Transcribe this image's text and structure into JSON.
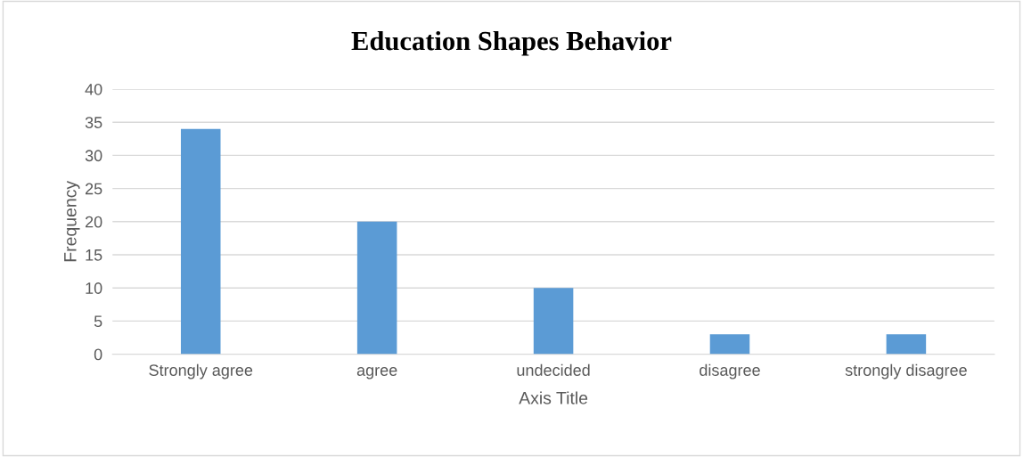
{
  "chart_data": {
    "type": "bar",
    "title": "Education Shapes Behavior",
    "xlabel": "Axis Title",
    "ylabel": "Frequency",
    "categories": [
      "Strongly agree",
      "agree",
      "undecided",
      "disagree",
      "strongly disagree"
    ],
    "values": [
      34,
      20,
      10,
      3,
      3
    ],
    "color": "#5b9bd5",
    "ylim": [
      0,
      40
    ],
    "yticks": [
      0,
      5,
      10,
      15,
      20,
      25,
      30,
      35,
      40
    ],
    "grid": "y",
    "legend": false
  }
}
